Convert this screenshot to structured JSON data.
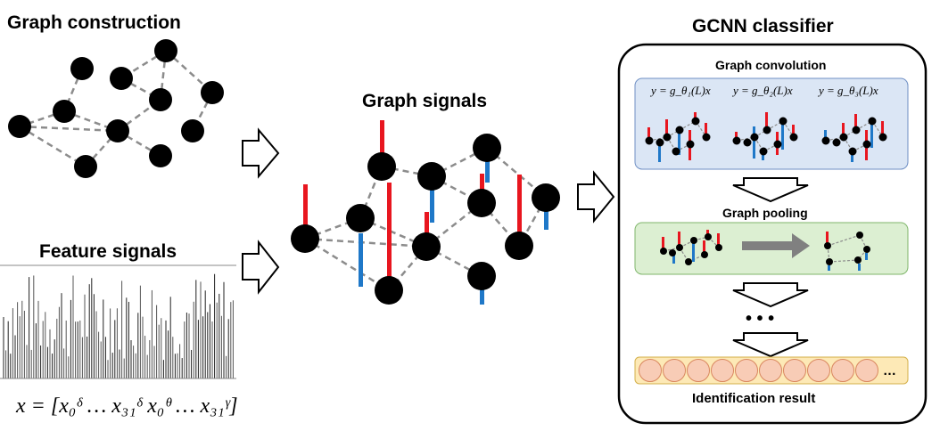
{
  "titles": {
    "graph_construction": "Graph construction",
    "feature_signals": "Feature signals",
    "graph_signals": "Graph signals",
    "gcnn_classifier": "GCNN classifier",
    "graph_convolution": "Graph convolution",
    "graph_pooling": "Graph pooling",
    "identification_result": "Identification result"
  },
  "formulas": {
    "feature_vector": "x = [x₀ᵟ … x₃₁ᵟ x₀ᶿ … x₃₁ᵞ]",
    "filters": [
      "y = g_θ₁(L)x",
      "y = g_θ₂(L)x",
      "y = g_θ₃(L)x"
    ]
  },
  "ellipsis_dots": "• • •",
  "output_ellipsis": "…",
  "output_units": 10,
  "colors": {
    "positive_signal": "#e8161f",
    "negative_signal": "#1f78c8",
    "convolution_panel": "#dbe6f5",
    "pooling_panel": "#dcefd2",
    "output_panel": "#fde9b6",
    "output_unit": "#f8ccb6",
    "pooling_arrow": "#808080"
  }
}
